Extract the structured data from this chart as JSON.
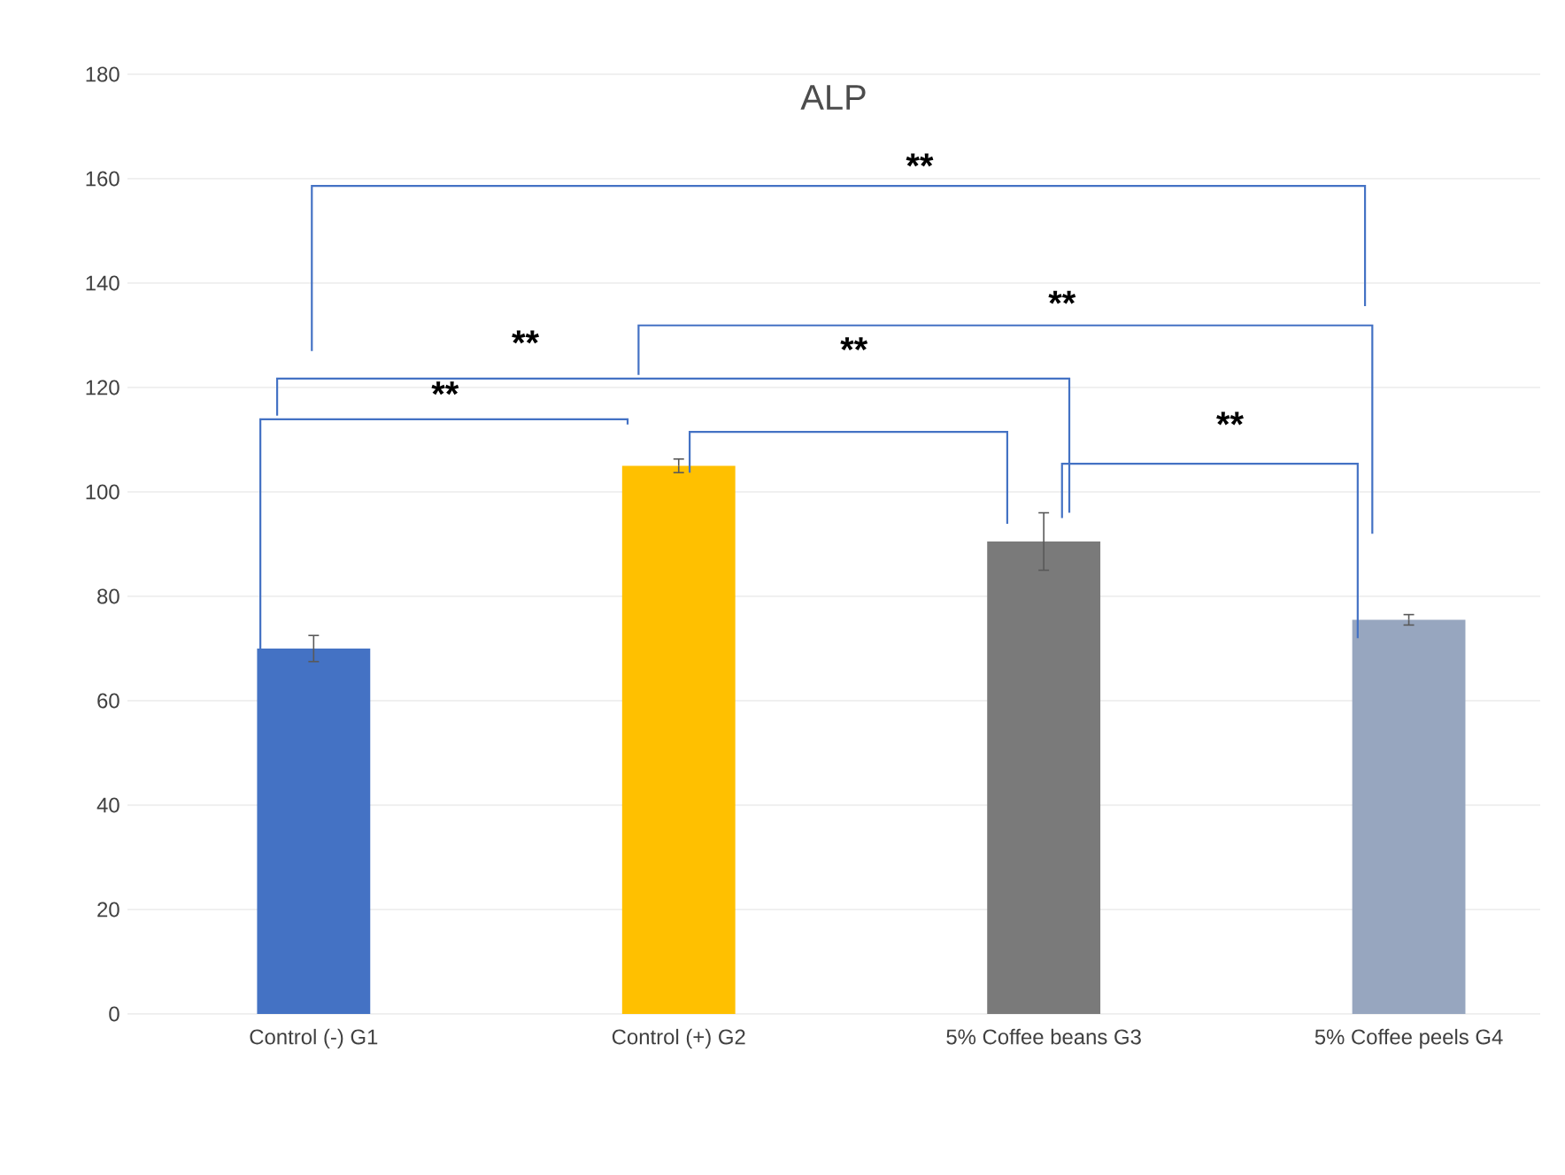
{
  "chart_data": {
    "type": "bar",
    "title": "ALP",
    "categories": [
      "Control (-) G1",
      "Control (+) G2",
      "5% Coffee beans G3",
      "5% Coffee peels G4"
    ],
    "values": [
      70,
      105,
      90.5,
      75.5
    ],
    "errors": [
      2.5,
      1.3,
      5.5,
      1
    ],
    "colors": [
      "#4472c4",
      "#ffc000",
      "#7a7a7a",
      "#97a6bf"
    ],
    "ylim": [
      0,
      180
    ],
    "yticks": [
      0,
      20,
      40,
      60,
      80,
      100,
      120,
      140,
      160,
      180
    ],
    "grid": "y",
    "annotations": [
      "**",
      "**",
      "**",
      "**",
      "**",
      "**"
    ]
  }
}
